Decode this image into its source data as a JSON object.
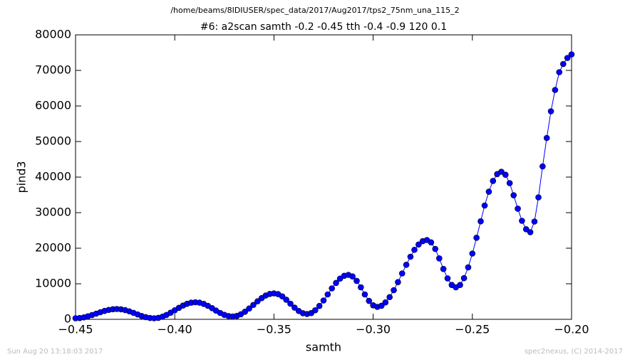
{
  "chart_data": {
    "type": "line",
    "header": "/home/beams/8IDIUSER/spec_data/2017/Aug2017/tps2_75nm_una_115_2",
    "title": "#6: a2scan  samth -0.2 -0.45  tth -0.4 -0.9  120 0.1",
    "x_label": "samth",
    "y_label": "pind3",
    "footer_left": "Sun Aug 20 13:18:03 2017",
    "footer_right": "spec2nexus, (C) 2014-2017",
    "color": "#0000ff",
    "xlim": [
      -0.45,
      -0.2
    ],
    "ylim": [
      0,
      80000
    ],
    "xticks": [
      {
        "value": -0.45,
        "label": "−0.45"
      },
      {
        "value": -0.4,
        "label": "−0.40"
      },
      {
        "value": -0.35,
        "label": "−0.35"
      },
      {
        "value": -0.3,
        "label": "−0.30"
      },
      {
        "value": -0.25,
        "label": "−0.25"
      },
      {
        "value": -0.2,
        "label": "−0.20"
      }
    ],
    "yticks": [
      0,
      10000,
      20000,
      30000,
      40000,
      50000,
      60000,
      70000,
      80000
    ],
    "x": [
      -0.45,
      -0.4479,
      -0.4458,
      -0.4438,
      -0.4417,
      -0.4396,
      -0.4375,
      -0.4354,
      -0.4333,
      -0.4312,
      -0.4292,
      -0.4271,
      -0.425,
      -0.4229,
      -0.4208,
      -0.4187,
      -0.4167,
      -0.4146,
      -0.4125,
      -0.4104,
      -0.4083,
      -0.4062,
      -0.4042,
      -0.4021,
      -0.4,
      -0.3979,
      -0.3958,
      -0.3938,
      -0.3917,
      -0.3896,
      -0.3875,
      -0.3854,
      -0.3833,
      -0.3812,
      -0.3792,
      -0.3771,
      -0.375,
      -0.3729,
      -0.3708,
      -0.3687,
      -0.3667,
      -0.3646,
      -0.3625,
      -0.3604,
      -0.3583,
      -0.3562,
      -0.3542,
      -0.3521,
      -0.35,
      -0.3479,
      -0.3458,
      -0.3438,
      -0.3417,
      -0.3396,
      -0.3375,
      -0.3354,
      -0.3333,
      -0.3312,
      -0.3292,
      -0.3271,
      -0.325,
      -0.3229,
      -0.3208,
      -0.3187,
      -0.3167,
      -0.3146,
      -0.3125,
      -0.3104,
      -0.3083,
      -0.3062,
      -0.3042,
      -0.3021,
      -0.3,
      -0.2979,
      -0.2958,
      -0.2938,
      -0.2917,
      -0.2896,
      -0.2875,
      -0.2854,
      -0.2833,
      -0.2812,
      -0.2792,
      -0.2771,
      -0.275,
      -0.2729,
      -0.2708,
      -0.2687,
      -0.2667,
      -0.2646,
      -0.2625,
      -0.2604,
      -0.2583,
      -0.2562,
      -0.2542,
      -0.2521,
      -0.25,
      -0.2479,
      -0.2458,
      -0.2438,
      -0.2417,
      -0.2396,
      -0.2375,
      -0.2354,
      -0.2333,
      -0.2312,
      -0.2292,
      -0.2271,
      -0.225,
      -0.2229,
      -0.2208,
      -0.2187,
      -0.2167,
      -0.2146,
      -0.2125,
      -0.2104,
      -0.2083,
      -0.2062,
      -0.2042,
      -0.2021,
      -0.2
    ],
    "values": [
      300,
      364,
      548,
      836,
      1198,
      1600,
      2002,
      2364,
      2652,
      2836,
      2900,
      2821,
      2596,
      2250,
      1826,
      1374,
      950,
      604,
      379,
      300,
      410,
      730,
      1227,
      1855,
      2550,
      3245,
      3873,
      4370,
      4690,
      4800,
      4679,
      4332,
      3800,
      3147,
      2453,
      1800,
      1268,
      921,
      800,
      959,
      1421,
      2140,
      3046,
      4050,
      5054,
      5960,
      6679,
      7141,
      7300,
      7079,
      6451,
      5510,
      4400,
      3290,
      2349,
      1721,
      1500,
      1770,
      2551,
      3767,
      5301,
      7000,
      8700,
      10233,
      11450,
      12231,
      12500,
      12055,
      10805,
      9002,
      6998,
      5195,
      3945,
      3500,
      3820,
      4760,
      6252,
      8200,
      10467,
      12900,
      15333,
      17600,
      19548,
      21040,
      21980,
      22300,
      21642,
      19796,
      17130,
      14170,
      11504,
      9658,
      9000,
      9657,
      11581,
      14610,
      18500,
      22936,
      27564,
      32000,
      35891,
      38920,
      40844,
      41500,
      40659,
      38299,
      34892,
      31108,
      27701,
      25342,
      24500,
      27500,
      34300,
      43000,
      51000,
      58500,
      64500,
      69500,
      71800,
      73500,
      74500
    ]
  }
}
